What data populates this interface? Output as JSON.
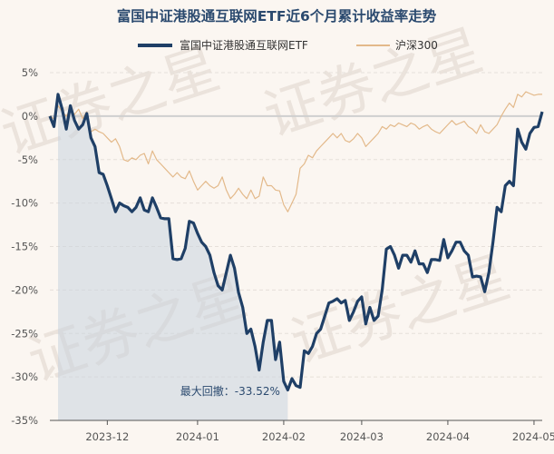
{
  "chart_data": {
    "type": "line",
    "title": "富国中证港股通互联网ETF近6个月累计收益率走势",
    "xlabel": "",
    "ylabel": "",
    "ylim": [
      -35,
      5
    ],
    "y_ticks": [
      "5%",
      "0%",
      "-5%",
      "-10%",
      "-15%",
      "-20%",
      "-25%",
      "-30%",
      "-35%"
    ],
    "y_tick_values": [
      5,
      0,
      -5,
      -10,
      -15,
      -20,
      -25,
      -30,
      -35
    ],
    "x_ticks": [
      "2023-12",
      "2024-01",
      "2024-02",
      "2024-03",
      "2024-04",
      "2024-05"
    ],
    "x_tick_positions": [
      14,
      36,
      57,
      76,
      97,
      118
    ],
    "n_points": 121,
    "legend_position": "top-center",
    "grid": true,
    "watermark": "证券之星",
    "annotation": {
      "label": "最大回撤：-33.52%",
      "index": 57
    },
    "drawdown_range": [
      2,
      58
    ],
    "series": [
      {
        "name": "富国中证港股通互联网ETF",
        "color": "#1f3f66",
        "values": [
          0.0,
          -1.2,
          2.5,
          0.8,
          -1.5,
          1.2,
          -0.5,
          -1.5,
          -1.0,
          0.3,
          -2.5,
          -3.5,
          -6.5,
          -6.7,
          -8.0,
          -9.5,
          -11.0,
          -10.0,
          -10.3,
          -10.5,
          -11.0,
          -10.5,
          -9.4,
          -10.8,
          -11.0,
          -9.4,
          -10.5,
          -11.7,
          -11.8,
          -11.8,
          -16.4,
          -16.5,
          -16.4,
          -15.2,
          -12.1,
          -12.3,
          -13.5,
          -14.5,
          -15.0,
          -16.0,
          -18.0,
          -19.5,
          -20.0,
          -18.0,
          -16.0,
          -17.5,
          -20.3,
          -22.0,
          -25.0,
          -24.5,
          -26.5,
          -29.2,
          -26.0,
          -23.5,
          -23.5,
          -28.0,
          -26.0,
          -30.5,
          -31.5,
          -30.2,
          -31.0,
          -31.2,
          -27.0,
          -27.3,
          -26.5,
          -25.0,
          -24.5,
          -23.0,
          -21.5,
          -21.3,
          -21.0,
          -21.5,
          -21.2,
          -23.5,
          -22.5,
          -21.3,
          -20.8,
          -23.9,
          -22.0,
          -23.5,
          -23.0,
          -20.0,
          -15.3,
          -15.0,
          -16.0,
          -17.5,
          -16.0,
          -16.0,
          -16.8,
          -15.5,
          -17.0,
          -17.0,
          -18.0,
          -16.5,
          -16.5,
          -16.6,
          -14.2,
          -16.3,
          -15.5,
          -14.5,
          -14.5,
          -15.5,
          -16.0,
          -18.5,
          -18.4,
          -18.5,
          -20.2,
          -18.0,
          -14.5,
          -10.5,
          -11.0,
          -8.0,
          -7.5,
          -8.0,
          -1.5,
          -3.0,
          -3.8,
          -2.0,
          -1.3,
          -1.2,
          0.5
        ]
      },
      {
        "name": "沪深300",
        "color": "#e3b98a",
        "values": [
          0.0,
          -0.3,
          1.2,
          0.5,
          0.0,
          0.8,
          0.2,
          0.8,
          -0.3,
          0.5,
          -1.8,
          -1.5,
          -1.8,
          -2.0,
          -2.5,
          -3.0,
          -2.6,
          -3.5,
          -5.0,
          -5.2,
          -4.8,
          -5.0,
          -4.5,
          -4.3,
          -5.5,
          -4.0,
          -5.0,
          -5.5,
          -6.0,
          -6.5,
          -7.0,
          -6.5,
          -7.0,
          -7.2,
          -6.3,
          -7.5,
          -8.5,
          -8.0,
          -7.5,
          -8.0,
          -8.3,
          -8.0,
          -7.0,
          -8.5,
          -9.5,
          -9.0,
          -8.3,
          -9.0,
          -9.5,
          -8.5,
          -9.5,
          -9.2,
          -7.0,
          -8.0,
          -8.0,
          -8.5,
          -8.6,
          -10.2,
          -11.0,
          -10.0,
          -9.0,
          -6.0,
          -5.5,
          -4.5,
          -4.8,
          -4.0,
          -3.5,
          -3.0,
          -2.5,
          -2.0,
          -2.5,
          -2.0,
          -2.8,
          -3.0,
          -2.6,
          -2.0,
          -2.5,
          -3.5,
          -3.0,
          -2.5,
          -2.0,
          -1.2,
          -1.5,
          -1.0,
          -1.2,
          -0.8,
          -1.0,
          -1.2,
          -0.8,
          -1.0,
          -1.5,
          -1.2,
          -1.0,
          -1.5,
          -1.8,
          -2.0,
          -1.5,
          -1.0,
          -0.5,
          -1.0,
          -0.8,
          -0.6,
          -1.2,
          -1.5,
          -2.0,
          -1.0,
          -1.8,
          -2.0,
          -1.5,
          -1.0,
          0.0,
          0.8,
          1.5,
          1.0,
          2.5,
          2.2,
          2.8,
          2.6,
          2.4,
          2.5,
          2.5
        ]
      }
    ]
  }
}
